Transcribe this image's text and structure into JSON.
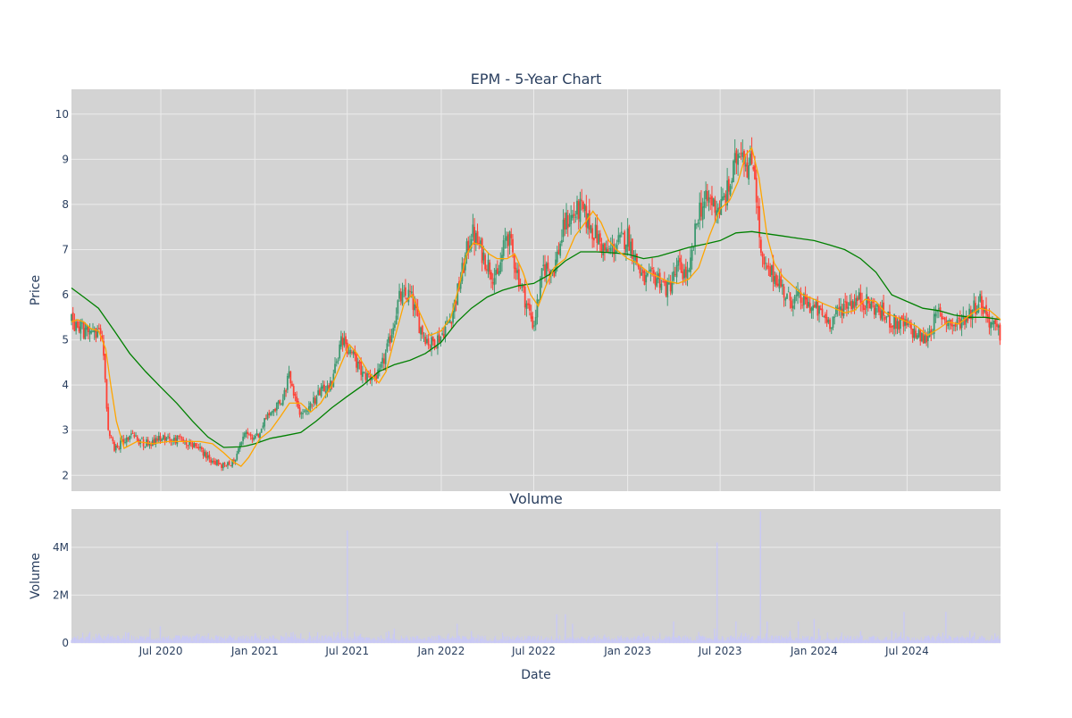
{
  "colors": {
    "background": "#ffffff",
    "plot_bg": "#d3d3d3",
    "grid": "#ebebeb",
    "text": "#2a3f5f",
    "increasing": "#3d9970",
    "decreasing": "#ff4136",
    "ma_short": "#ffa500",
    "ma_long": "#008000",
    "volume": "#c9c9f5"
  },
  "chart_data": [
    {
      "type": "candlestick",
      "title": "EPM - 5-Year Chart",
      "ylabel": "Price",
      "ylim": [
        1.65,
        10.55
      ],
      "yticks": [
        2,
        3,
        4,
        5,
        6,
        7,
        8,
        9,
        10
      ],
      "xlim": [
        "2020-01-08",
        "2024-12-31"
      ],
      "price_path": {
        "dates": [
          "2020-01-08",
          "2020-02-01",
          "2020-03-01",
          "2020-03-10",
          "2020-03-20",
          "2020-04-01",
          "2020-04-15",
          "2020-05-01",
          "2020-06-01",
          "2020-07-01",
          "2020-08-01",
          "2020-09-01",
          "2020-10-01",
          "2020-11-01",
          "2020-11-20",
          "2020-12-01",
          "2020-12-15",
          "2021-01-01",
          "2021-02-01",
          "2021-02-20",
          "2021-03-10",
          "2021-04-01",
          "2021-05-01",
          "2021-06-01",
          "2021-06-20",
          "2021-07-10",
          "2021-08-01",
          "2021-09-01",
          "2021-09-20",
          "2021-10-10",
          "2021-11-01",
          "2021-11-20",
          "2021-12-10",
          "2022-01-01",
          "2022-01-20",
          "2022-02-05",
          "2022-03-01",
          "2022-04-01",
          "2022-04-20",
          "2022-05-10",
          "2022-06-01",
          "2022-07-01",
          "2022-07-20",
          "2022-08-10",
          "2022-09-01",
          "2022-10-01",
          "2022-11-01",
          "2022-11-20",
          "2022-12-10",
          "2023-01-01",
          "2023-02-01",
          "2023-03-01",
          "2023-03-20",
          "2023-04-10",
          "2023-05-01",
          "2023-05-20",
          "2023-06-10",
          "2023-07-01",
          "2023-07-20",
          "2023-08-10",
          "2023-08-25",
          "2023-09-05",
          "2023-09-20",
          "2023-10-01",
          "2023-10-20",
          "2023-11-10",
          "2023-12-01",
          "2024-01-01",
          "2024-02-01",
          "2024-03-01",
          "2024-04-01",
          "2024-05-01",
          "2024-06-01",
          "2024-07-01",
          "2024-07-20",
          "2024-08-05",
          "2024-09-01",
          "2024-10-01",
          "2024-11-01",
          "2024-11-20",
          "2024-12-10",
          "2024-12-31"
        ],
        "close": [
          5.4,
          5.2,
          5.1,
          4.9,
          3.0,
          2.6,
          2.7,
          2.9,
          2.7,
          2.8,
          2.8,
          2.7,
          2.4,
          2.2,
          2.3,
          2.6,
          2.9,
          2.8,
          3.4,
          3.6,
          4.2,
          3.3,
          3.7,
          4.1,
          5.0,
          4.7,
          4.2,
          4.2,
          4.9,
          5.9,
          6.0,
          5.3,
          4.9,
          5.1,
          5.5,
          6.2,
          7.4,
          6.7,
          6.3,
          7.4,
          6.4,
          5.3,
          6.6,
          6.6,
          7.6,
          7.9,
          7.3,
          6.9,
          7.1,
          7.3,
          6.3,
          6.4,
          6.1,
          6.6,
          6.4,
          7.9,
          8.1,
          7.9,
          8.4,
          9.4,
          8.8,
          9.0,
          6.7,
          6.5,
          6.4,
          5.9,
          5.9,
          5.7,
          5.4,
          5.8,
          5.9,
          5.7,
          5.4,
          5.3,
          5.1,
          5.0,
          5.6,
          5.3,
          5.6,
          5.9,
          5.4,
          5.1
        ]
      },
      "ma_short": {
        "name": "",
        "dates": [
          "2020-01-08",
          "2020-01-20",
          "2020-02-01",
          "2020-02-15",
          "2020-03-01",
          "2020-03-15",
          "2020-03-25",
          "2020-04-05",
          "2020-04-20",
          "2020-05-15",
          "2020-06-15",
          "2020-07-15",
          "2020-08-15",
          "2020-09-15",
          "2020-10-10",
          "2020-11-01",
          "2020-11-20",
          "2020-12-05",
          "2020-12-20",
          "2021-01-10",
          "2021-02-01",
          "2021-02-20",
          "2021-03-10",
          "2021-04-01",
          "2021-04-20",
          "2021-05-10",
          "2021-06-01",
          "2021-06-20",
          "2021-07-05",
          "2021-07-20",
          "2021-08-10",
          "2021-09-01",
          "2021-09-15",
          "2021-10-01",
          "2021-10-20",
          "2021-11-05",
          "2021-11-20",
          "2021-12-10",
          "2022-01-01",
          "2022-01-20",
          "2022-02-05",
          "2022-02-20",
          "2022-03-05",
          "2022-03-20",
          "2022-04-05",
          "2022-04-20",
          "2022-05-10",
          "2022-05-25",
          "2022-06-10",
          "2022-06-25",
          "2022-07-10",
          "2022-07-25",
          "2022-08-10",
          "2022-09-01",
          "2022-09-20",
          "2022-10-10",
          "2022-10-25",
          "2022-11-10",
          "2022-11-25",
          "2022-12-10",
          "2023-01-01",
          "2023-01-20",
          "2023-02-10",
          "2023-03-01",
          "2023-03-20",
          "2023-04-10",
          "2023-05-01",
          "2023-05-20",
          "2023-06-10",
          "2023-07-01",
          "2023-07-20",
          "2023-08-05",
          "2023-08-20",
          "2023-09-01",
          "2023-09-15",
          "2023-10-01",
          "2023-10-15",
          "2023-11-01",
          "2023-11-20",
          "2023-12-10",
          "2024-01-01",
          "2024-01-20",
          "2024-02-10",
          "2024-03-01",
          "2024-03-20",
          "2024-04-10",
          "2024-05-01",
          "2024-05-20",
          "2024-06-10",
          "2024-07-01",
          "2024-07-20",
          "2024-08-10",
          "2024-09-01",
          "2024-09-20",
          "2024-10-10",
          "2024-11-01",
          "2024-11-20",
          "2024-12-10",
          "2024-12-31"
        ],
        "values": [
          5.4,
          5.45,
          5.4,
          5.25,
          5.2,
          4.8,
          4.0,
          3.2,
          2.6,
          2.75,
          2.7,
          2.75,
          2.75,
          2.75,
          2.7,
          2.5,
          2.3,
          2.2,
          2.4,
          2.8,
          3.0,
          3.3,
          3.6,
          3.6,
          3.4,
          3.6,
          4.0,
          4.5,
          4.9,
          4.7,
          4.3,
          4.05,
          4.3,
          5.0,
          5.8,
          6.0,
          5.6,
          5.1,
          5.2,
          5.5,
          6.2,
          6.9,
          7.15,
          7.1,
          6.9,
          6.8,
          6.8,
          6.9,
          6.5,
          6.0,
          5.75,
          6.2,
          6.6,
          6.8,
          7.3,
          7.6,
          7.85,
          7.6,
          7.2,
          7.0,
          6.8,
          6.7,
          6.5,
          6.4,
          6.3,
          6.25,
          6.35,
          6.6,
          7.3,
          7.9,
          8.1,
          8.5,
          9.1,
          9.25,
          8.6,
          7.3,
          6.7,
          6.4,
          6.2,
          6.0,
          5.9,
          5.8,
          5.7,
          5.6,
          5.65,
          5.9,
          5.85,
          5.6,
          5.5,
          5.4,
          5.3,
          5.1,
          5.25,
          5.4,
          5.35,
          5.55,
          5.7,
          5.65,
          5.45
        ]
      },
      "ma_long": {
        "name": "",
        "dates": [
          "2020-01-08",
          "2020-02-01",
          "2020-03-01",
          "2020-04-01",
          "2020-05-01",
          "2020-06-01",
          "2020-07-01",
          "2020-08-01",
          "2020-09-01",
          "2020-10-01",
          "2020-11-01",
          "2020-12-01",
          "2020-12-15",
          "2021-01-01",
          "2021-02-01",
          "2021-03-01",
          "2021-04-01",
          "2021-05-01",
          "2021-06-01",
          "2021-07-01",
          "2021-08-01",
          "2021-09-01",
          "2021-10-01",
          "2021-11-01",
          "2021-12-01",
          "2022-01-01",
          "2022-02-01",
          "2022-03-01",
          "2022-04-01",
          "2022-05-01",
          "2022-06-01",
          "2022-07-01",
          "2022-08-01",
          "2022-09-01",
          "2022-10-01",
          "2022-11-01",
          "2022-12-01",
          "2023-01-01",
          "2023-02-01",
          "2023-03-01",
          "2023-04-01",
          "2023-05-01",
          "2023-06-01",
          "2023-07-01",
          "2023-08-01",
          "2023-09-01",
          "2023-10-01",
          "2023-11-01",
          "2023-12-01",
          "2024-01-01",
          "2024-02-01",
          "2024-03-01",
          "2024-04-01",
          "2024-05-01",
          "2024-06-01",
          "2024-07-01",
          "2024-08-01",
          "2024-09-01",
          "2024-10-01",
          "2024-11-01",
          "2024-12-01",
          "2024-12-31"
        ],
        "values": [
          6.15,
          5.95,
          5.7,
          5.2,
          4.7,
          4.3,
          3.95,
          3.6,
          3.2,
          2.85,
          2.62,
          2.63,
          2.65,
          2.7,
          2.82,
          2.88,
          2.95,
          3.2,
          3.5,
          3.75,
          4.0,
          4.3,
          4.45,
          4.55,
          4.7,
          4.95,
          5.4,
          5.7,
          5.95,
          6.1,
          6.2,
          6.25,
          6.45,
          6.75,
          6.95,
          6.95,
          6.93,
          6.9,
          6.8,
          6.85,
          6.95,
          7.05,
          7.12,
          7.2,
          7.37,
          7.4,
          7.35,
          7.3,
          7.25,
          7.2,
          7.1,
          7.0,
          6.8,
          6.5,
          6.0,
          5.85,
          5.7,
          5.65,
          5.55,
          5.5,
          5.5,
          5.45
        ]
      }
    },
    {
      "type": "bar",
      "title": "Volume",
      "xlabel": "Date",
      "ylabel": "Volume",
      "ylim": [
        0,
        5600000
      ],
      "yticks": [
        0,
        2000000,
        4000000
      ],
      "ytick_labels": [
        "0",
        "2M",
        "4M"
      ],
      "xticks": [
        "2020-07-01",
        "2021-01-01",
        "2021-07-01",
        "2022-01-01",
        "2022-07-01",
        "2023-01-01",
        "2023-07-01",
        "2024-01-01",
        "2024-07-01"
      ],
      "xtick_labels": [
        "Jul 2020",
        "Jan 2021",
        "Jul 2021",
        "Jan 2022",
        "Jul 2022",
        "Jan 2023",
        "Jul 2023",
        "Jan 2024",
        "Jul 2024"
      ],
      "spikes": [
        {
          "date": "2020-03-12",
          "value": 300000
        },
        {
          "date": "2020-06-10",
          "value": 600000
        },
        {
          "date": "2020-06-30",
          "value": 700000
        },
        {
          "date": "2021-04-01",
          "value": 400000
        },
        {
          "date": "2021-06-20",
          "value": 500000
        },
        {
          "date": "2021-07-01",
          "value": 4700000
        },
        {
          "date": "2021-09-20",
          "value": 500000
        },
        {
          "date": "2021-10-01",
          "value": 600000
        },
        {
          "date": "2022-02-01",
          "value": 800000
        },
        {
          "date": "2022-03-01",
          "value": 500000
        },
        {
          "date": "2022-08-15",
          "value": 1200000
        },
        {
          "date": "2022-09-01",
          "value": 1200000
        },
        {
          "date": "2022-09-15",
          "value": 800000
        },
        {
          "date": "2023-02-01",
          "value": 400000
        },
        {
          "date": "2023-04-01",
          "value": 900000
        },
        {
          "date": "2023-06-20",
          "value": 600000
        },
        {
          "date": "2023-06-25",
          "value": 4200000
        },
        {
          "date": "2023-08-01",
          "value": 900000
        },
        {
          "date": "2023-09-18",
          "value": 5500000
        },
        {
          "date": "2023-10-01",
          "value": 900000
        },
        {
          "date": "2023-11-15",
          "value": 500000
        },
        {
          "date": "2023-12-01",
          "value": 900000
        },
        {
          "date": "2024-01-01",
          "value": 1000000
        },
        {
          "date": "2024-01-10",
          "value": 600000
        },
        {
          "date": "2024-04-01",
          "value": 500000
        },
        {
          "date": "2024-06-01",
          "value": 500000
        },
        {
          "date": "2024-06-25",
          "value": 1300000
        },
        {
          "date": "2024-09-15",
          "value": 1300000
        },
        {
          "date": "2024-11-01",
          "value": 500000
        },
        {
          "date": "2024-12-20",
          "value": 400000
        }
      ],
      "baseline_range": [
        80000,
        320000
      ]
    }
  ]
}
